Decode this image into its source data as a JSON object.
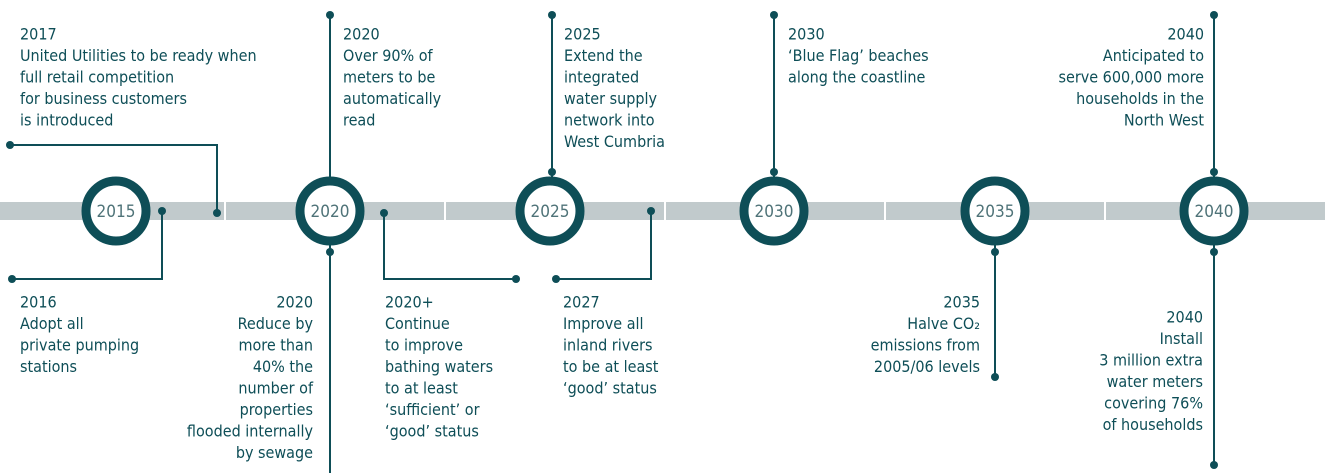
{
  "nodes": [
    {
      "label": "2015"
    },
    {
      "label": "2020"
    },
    {
      "label": "2025"
    },
    {
      "label": "2030"
    },
    {
      "label": "2035"
    },
    {
      "label": "2040"
    }
  ],
  "events": [
    {
      "year": "2017",
      "lines": [
        "United Utilities to be ready when",
        "full retail competition",
        "for business customers",
        "is introduced"
      ]
    },
    {
      "year": "2020",
      "lines": [
        "Over 90% of",
        "meters to be",
        "automatically",
        "read"
      ]
    },
    {
      "year": "2025",
      "lines": [
        "Extend the",
        "integrated",
        "water supply",
        "network into",
        "West Cumbria"
      ]
    },
    {
      "year": "2030",
      "lines": [
        "‘Blue Flag’ beaches",
        "along the coastline"
      ]
    },
    {
      "year": "2040",
      "lines": [
        "Anticipated to",
        "serve 600,000 more",
        "households in the",
        "North West"
      ]
    },
    {
      "year": "2016",
      "lines": [
        "Adopt all",
        "private pumping",
        "stations"
      ]
    },
    {
      "year": "2020",
      "lines": [
        "Reduce by",
        "more than",
        "40% the",
        "number of",
        "properties",
        "flooded internally",
        "by sewage"
      ]
    },
    {
      "year": "2020+",
      "lines": [
        "Continue",
        "to improve",
        "bathing waters",
        "to at least",
        "‘sufficient’ or",
        "‘good’ status"
      ]
    },
    {
      "year": "2027",
      "lines": [
        "Improve all",
        "inland rivers",
        "to be at least",
        "‘good’ status"
      ]
    },
    {
      "year": "2035",
      "lines": [
        "Halve CO₂",
        "emissions from",
        "2005/06 levels"
      ]
    },
    {
      "year": "2040",
      "lines": [
        "Install",
        "3 million extra",
        "water meters",
        "covering 76%",
        "of households"
      ]
    }
  ]
}
